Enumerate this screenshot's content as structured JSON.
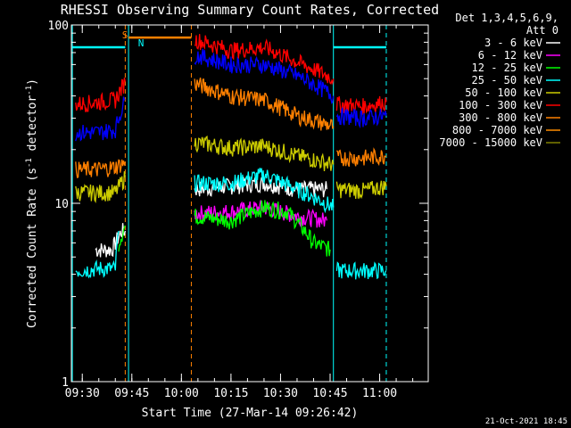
{
  "chart_data": {
    "type": "line",
    "title": "RHESSI Observing Summary Count Rates, Corrected",
    "xlabel": "Start Time (27-Mar-14 09:26:42)",
    "ylabel_main": "Corrected Count Rate (s",
    "ylabel_sup1": "-1",
    "ylabel_mid": " detector",
    "ylabel_sup2": "-1",
    "ylabel_end": ")",
    "y_scale": "log",
    "ylim": [
      1,
      100
    ],
    "xlim": [
      "09:26:42",
      "11:14:42"
    ],
    "x_ticks": [
      "09:30",
      "09:45",
      "10:00",
      "10:15",
      "10:30",
      "10:45",
      "11:00"
    ],
    "y_ticks": [
      "1",
      "10",
      "100"
    ],
    "legend_header": [
      "Det 1,3,4,5,6,9,",
      "Att 0"
    ],
    "legend_position": "right",
    "footer": "21-Oct-2021 18:45",
    "markers": {
      "s_label": "S",
      "n_label": "N"
    },
    "series": [
      {
        "name": "3 - 6 keV",
        "color": "#ffffff",
        "segments": [
          [
            [
              "09:34",
              5.5
            ],
            [
              "09:39",
              5.5
            ],
            [
              "09:42",
              7
            ],
            [
              "09:43",
              7
            ]
          ],
          [
            [
              "10:04",
              12
            ],
            [
              "10:15",
              12.5
            ],
            [
              "10:25",
              13
            ],
            [
              "10:35",
              12
            ],
            [
              "10:40",
              12
            ],
            [
              "10:44",
              12
            ]
          ]
        ]
      },
      {
        "name": "6 - 12 keV",
        "color": "#ff00ff",
        "segments": [
          [
            [
              "10:04",
              8.8
            ],
            [
              "10:15",
              9
            ],
            [
              "10:25",
              9.5
            ],
            [
              "10:35",
              8.5
            ],
            [
              "10:44",
              8
            ]
          ]
        ]
      },
      {
        "name": "12 - 25 keV",
        "color": "#00ff00",
        "segments": [
          [
            [
              "09:41",
              6
            ],
            [
              "09:43",
              7.5
            ]
          ],
          [
            [
              "10:04",
              8.5
            ],
            [
              "10:15",
              8
            ],
            [
              "10:25",
              9.5
            ],
            [
              "10:32",
              9
            ],
            [
              "10:40",
              6
            ],
            [
              "10:45",
              5.5
            ]
          ]
        ]
      },
      {
        "name": "25 - 50 keV",
        "color": "#00ffff",
        "segments": [
          [
            [
              "09:28",
              4.2
            ],
            [
              "09:35",
              4.3
            ],
            [
              "09:40",
              4.3
            ],
            [
              "09:41",
              7
            ]
          ],
          [
            [
              "10:04",
              13
            ],
            [
              "10:15",
              13
            ],
            [
              "10:25",
              14.5
            ],
            [
              "10:35",
              12
            ],
            [
              "10:46",
              9.5
            ]
          ],
          [
            [
              "10:47",
              4.2
            ],
            [
              "10:55",
              4.2
            ],
            [
              "11:02",
              4.2
            ]
          ]
        ]
      },
      {
        "name": "50 - 100 keV",
        "color": "#cccc00",
        "segments": [
          [
            [
              "09:28",
              11.5
            ],
            [
              "09:35",
              11.5
            ],
            [
              "09:40",
              11.5
            ],
            [
              "09:43",
              14
            ]
          ],
          [
            [
              "10:04",
              22
            ],
            [
              "10:15",
              20.5
            ],
            [
              "10:25",
              21
            ],
            [
              "10:35",
              18.5
            ],
            [
              "10:46",
              16.5
            ]
          ],
          [
            [
              "10:47",
              12
            ],
            [
              "10:55",
              11.8
            ],
            [
              "11:02",
              12.5
            ]
          ]
        ]
      },
      {
        "name": "100 - 300 keV",
        "color": "#ff0000",
        "segments": [
          [
            [
              "09:28",
              36
            ],
            [
              "09:35",
              37
            ],
            [
              "09:40",
              38
            ],
            [
              "09:43",
              48
            ]
          ],
          [
            [
              "10:04",
              83
            ],
            [
              "10:15",
              72
            ],
            [
              "10:25",
              75
            ],
            [
              "10:35",
              62
            ],
            [
              "10:46",
              50
            ]
          ],
          [
            [
              "10:47",
              36
            ],
            [
              "10:55",
              35
            ],
            [
              "11:02",
              37
            ]
          ]
        ]
      },
      {
        "name": "300 - 800 keV",
        "color": "#ff8000",
        "segments": [
          [
            [
              "09:28",
              15.5
            ],
            [
              "09:35",
              15.5
            ],
            [
              "09:40",
              16
            ],
            [
              "09:43",
              17
            ]
          ],
          [
            [
              "10:04",
              47
            ],
            [
              "10:15",
              40
            ],
            [
              "10:25",
              38
            ],
            [
              "10:35",
              31
            ],
            [
              "10:46",
              27
            ]
          ],
          [
            [
              "10:47",
              18
            ],
            [
              "10:55",
              18
            ],
            [
              "11:02",
              18.5
            ]
          ]
        ]
      },
      {
        "name": "800 - 7000 keV",
        "color": "#ff8c00",
        "segments": []
      },
      {
        "name": "7000 - 15000 keV",
        "color": "#808000",
        "segments": []
      },
      {
        "name": "",
        "color": "#0000ff",
        "segments": [
          [
            [
              "09:28",
              25
            ],
            [
              "09:35",
              25
            ],
            [
              "09:40",
              26
            ],
            [
              "09:43",
              38
            ]
          ],
          [
            [
              "10:04",
              68
            ],
            [
              "10:15",
              60
            ],
            [
              "10:25",
              60
            ],
            [
              "10:35",
              52
            ],
            [
              "10:46",
              40
            ]
          ],
          [
            [
              "10:47",
              31
            ],
            [
              "10:55",
              30
            ],
            [
              "11:02",
              31
            ]
          ]
        ]
      }
    ],
    "vertical_markers": [
      {
        "time": "09:27",
        "color": "#00ffff",
        "style": "solid"
      },
      {
        "time": "09:43",
        "color": "#ff8000",
        "style": "dashed"
      },
      {
        "time": "09:44",
        "color": "#00ffff",
        "style": "solid"
      },
      {
        "time": "10:03",
        "color": "#ff8000",
        "style": "dashed"
      },
      {
        "time": "10:46",
        "color": "#00ffff",
        "style": "solid"
      },
      {
        "time": "11:02",
        "color": "#00ffff",
        "style": "dashed"
      }
    ],
    "horizontal_bars": [
      {
        "from": "09:27",
        "to": "09:43",
        "value": 75,
        "color": "#00ffff"
      },
      {
        "from": "09:44",
        "to": "10:03",
        "value": 85,
        "color": "#ff8000"
      },
      {
        "from": "10:46",
        "to": "11:02",
        "value": 75,
        "color": "#00ffff"
      }
    ]
  }
}
